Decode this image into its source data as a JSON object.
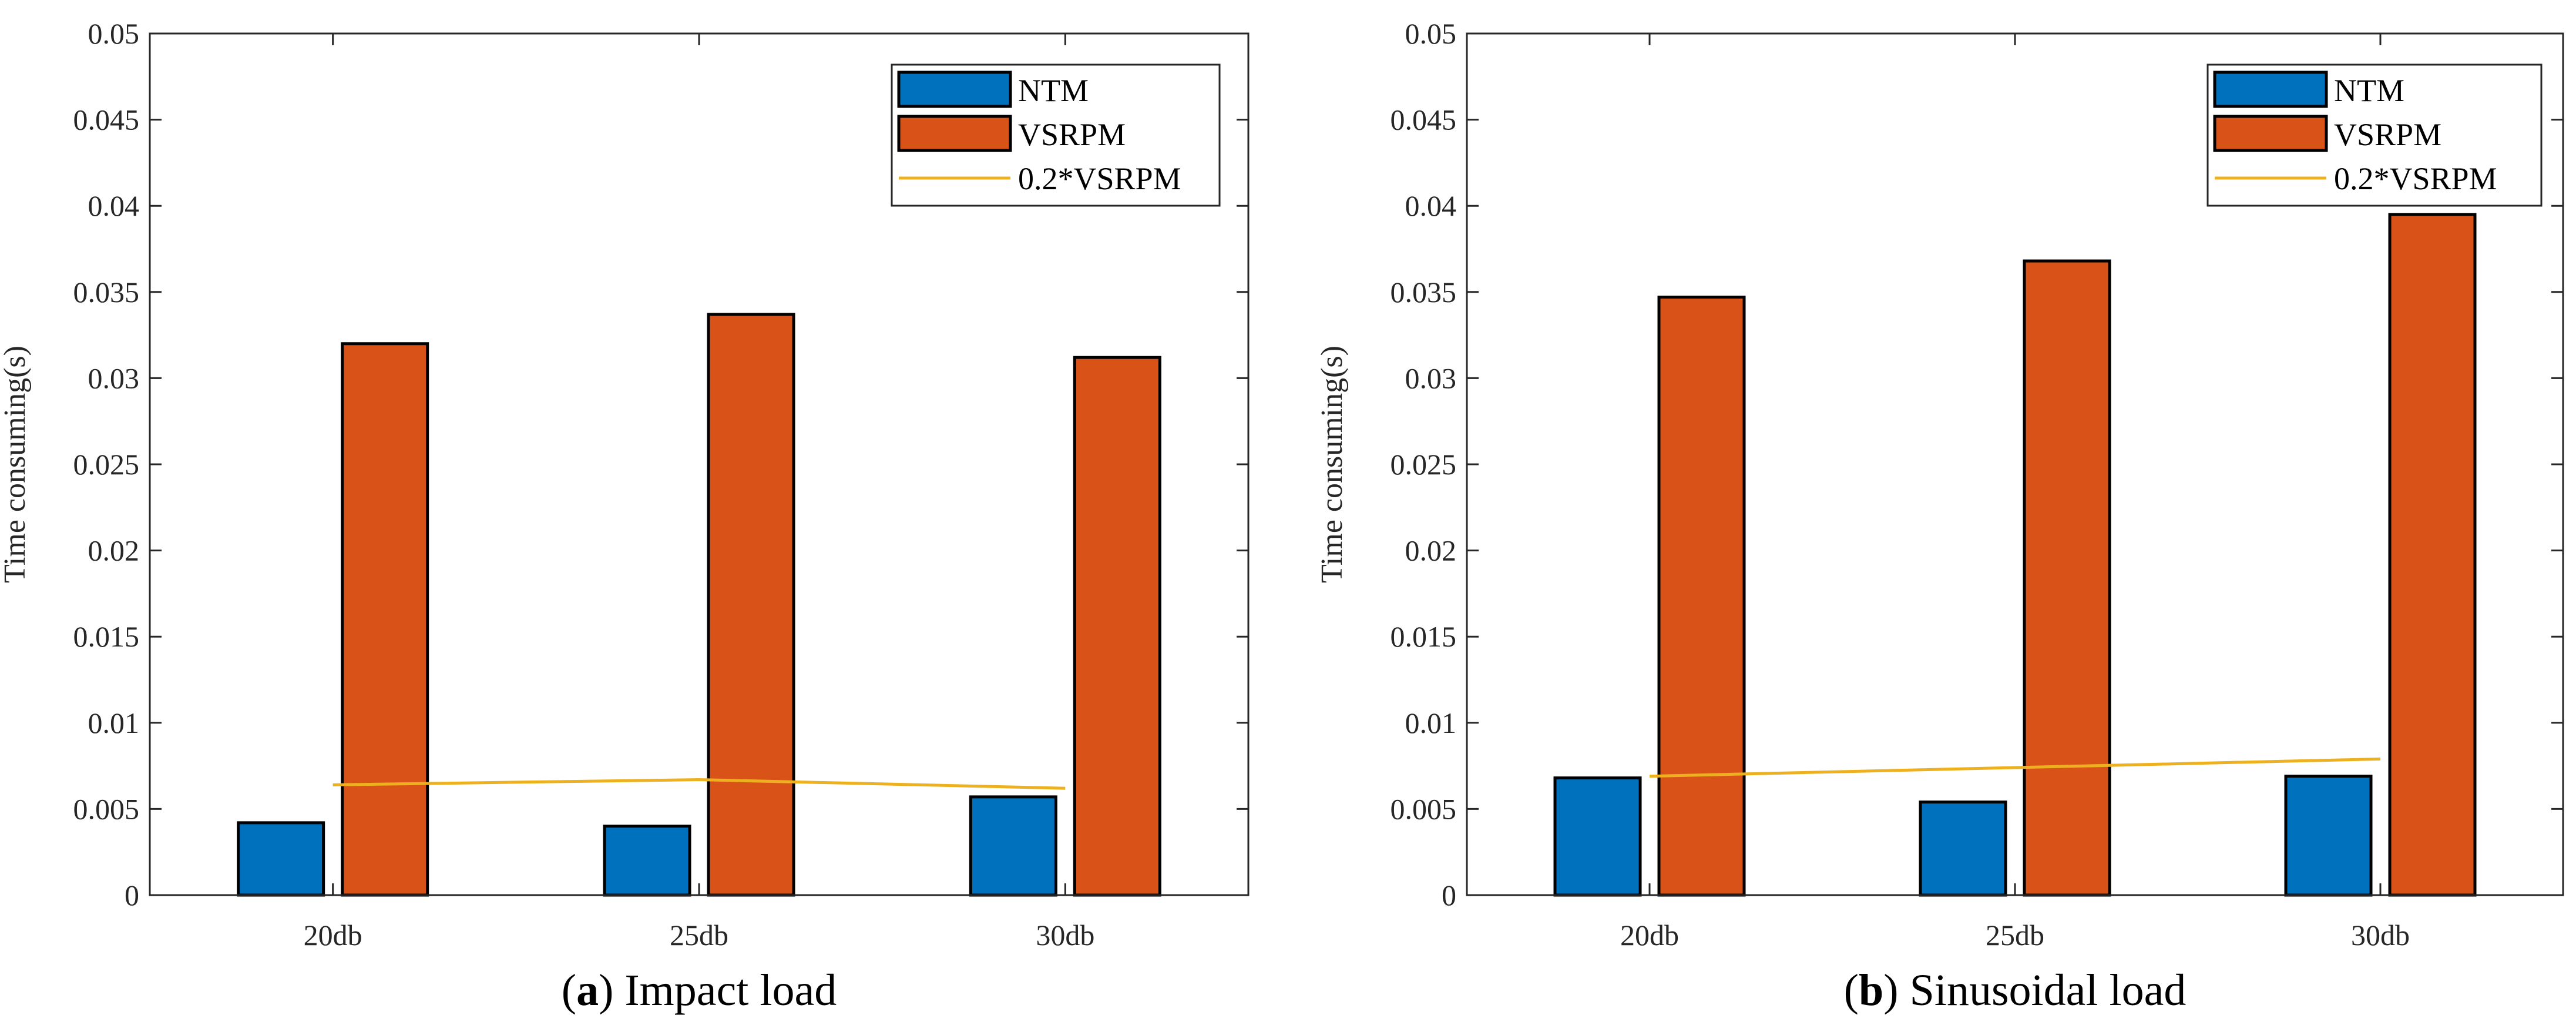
{
  "chart_data": [
    {
      "type": "bar",
      "caption_letter": "a",
      "caption_text": "Impact load",
      "categories": [
        "20db",
        "25db",
        "30db"
      ],
      "series": [
        {
          "name": "NTM",
          "type": "bar",
          "color": "#0072BD",
          "values": [
            0.0042,
            0.004,
            0.0057
          ]
        },
        {
          "name": "VSRPM",
          "type": "bar",
          "color": "#D95319",
          "values": [
            0.032,
            0.0337,
            0.0312
          ]
        },
        {
          "name": "0.2*VSRPM",
          "type": "line",
          "color": "#EDB120",
          "values": [
            0.0064,
            0.0067,
            0.0062
          ]
        }
      ],
      "ylabel": "Time consuming(s)",
      "xlabel": "",
      "ylim": [
        0,
        0.05
      ],
      "yticks": [
        "0",
        "0.005",
        "0.01",
        "0.015",
        "0.02",
        "0.025",
        "0.03",
        "0.035",
        "0.04",
        "0.045",
        "0.05"
      ],
      "legend_position": "top-right",
      "grid": false
    },
    {
      "type": "bar",
      "caption_letter": "b",
      "caption_text": "Sinusoidal load",
      "categories": [
        "20db",
        "25db",
        "30db"
      ],
      "series": [
        {
          "name": "NTM",
          "type": "bar",
          "color": "#0072BD",
          "values": [
            0.0068,
            0.0054,
            0.0069
          ]
        },
        {
          "name": "VSRPM",
          "type": "bar",
          "color": "#D95319",
          "values": [
            0.0347,
            0.0368,
            0.0395
          ]
        },
        {
          "name": "0.2*VSRPM",
          "type": "line",
          "color": "#EDB120",
          "values": [
            0.0069,
            0.0074,
            0.0079
          ]
        }
      ],
      "ylabel": "Time consuming(s)",
      "xlabel": "",
      "ylim": [
        0,
        0.05
      ],
      "yticks": [
        "0",
        "0.005",
        "0.01",
        "0.015",
        "0.02",
        "0.025",
        "0.03",
        "0.035",
        "0.04",
        "0.045",
        "0.05"
      ],
      "legend_position": "top-right",
      "grid": false
    }
  ]
}
